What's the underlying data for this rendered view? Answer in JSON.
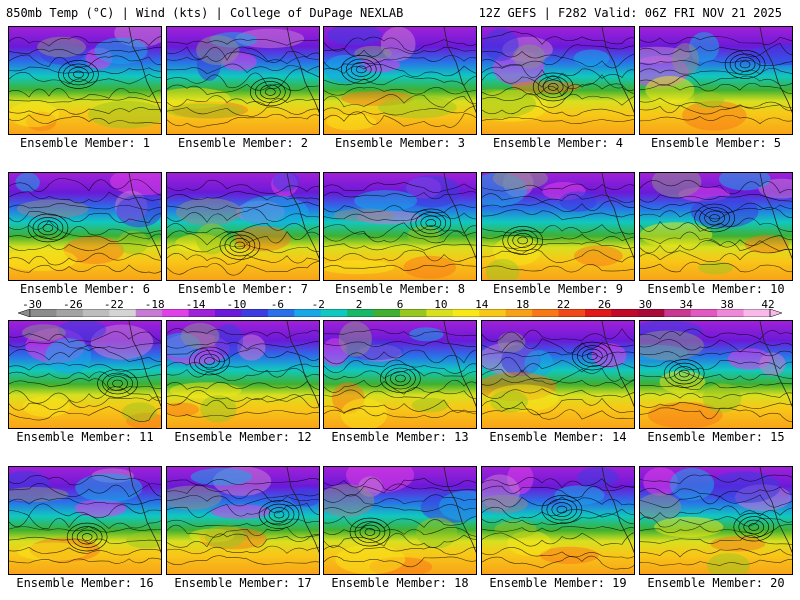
{
  "header": {
    "left": "850mb Temp (°C) | Wind (kts) | College of DuPage NEXLAB",
    "right": "12Z GEFS | F282 Valid: 06Z FRI NOV 21 2025"
  },
  "label_prefix": "Ensemble Member: ",
  "members": [
    1,
    2,
    3,
    4,
    5,
    6,
    7,
    8,
    9,
    10,
    11,
    12,
    13,
    14,
    15,
    16,
    17,
    18,
    19,
    20
  ],
  "colorbar": {
    "ticks": [
      "-30",
      "-26",
      "-22",
      "-18",
      "-14",
      "-10",
      "-6",
      "-2",
      "2",
      "6",
      "10",
      "14",
      "18",
      "22",
      "26",
      "30",
      "34",
      "38",
      "42"
    ],
    "colors": [
      "#8c8c8c",
      "#a3a3a3",
      "#bdbdbd",
      "#d4d4d4",
      "#c77ad4",
      "#e040e8",
      "#a020d8",
      "#6a1ad8",
      "#3c3ce0",
      "#2a70e8",
      "#18a8e8",
      "#10c8c0",
      "#18b868",
      "#40b030",
      "#98c820",
      "#d8e020",
      "#f8e818",
      "#f8c818",
      "#f8a018",
      "#f87818",
      "#f04818",
      "#e01818",
      "#c00828",
      "#a80838",
      "#c83890",
      "#e058c0",
      "#f088d8",
      "#f8b8e8"
    ]
  }
}
